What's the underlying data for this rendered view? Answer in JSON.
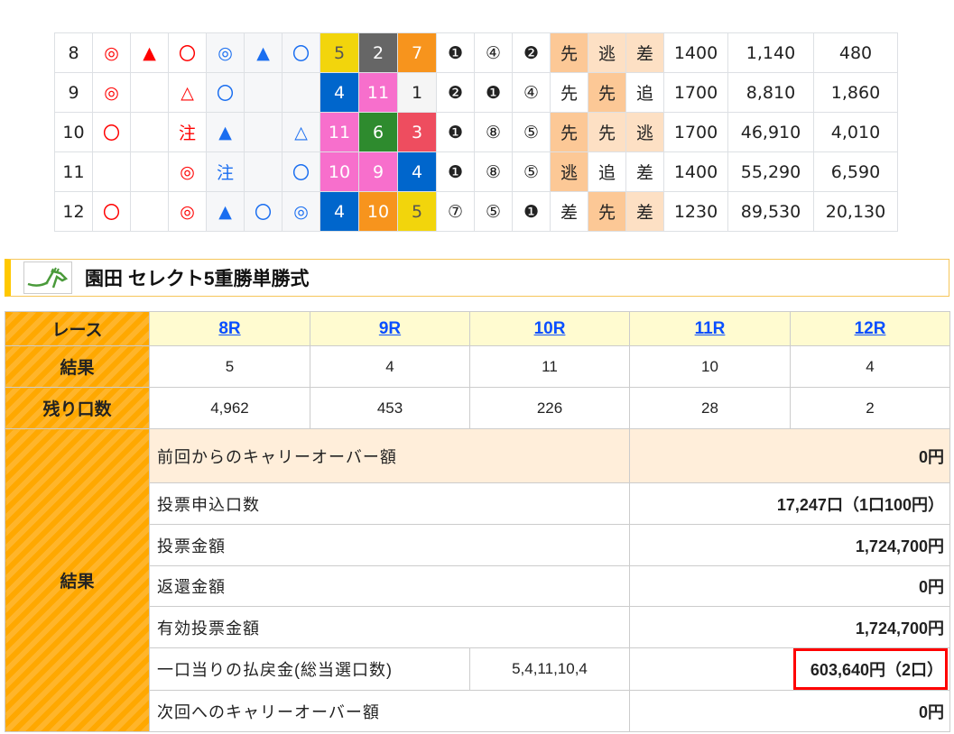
{
  "race_table": {
    "rows": [
      {
        "race": "8",
        "marks": [
          {
            "s": "◎",
            "c": "red"
          },
          {
            "s": "▲",
            "c": "red"
          },
          {
            "s": "〇",
            "c": "red"
          },
          {
            "s": "◎",
            "c": "blue"
          },
          {
            "s": "▲",
            "c": "blue"
          },
          {
            "s": "〇",
            "c": "blue"
          }
        ],
        "results": [
          {
            "n": "5",
            "bg": "#f2d50c",
            "fg": "#555"
          },
          {
            "n": "2",
            "bg": "#666666",
            "fg": "#fff"
          },
          {
            "n": "7",
            "bg": "#f7941d",
            "fg": "#fff"
          }
        ],
        "circles": [
          "❶",
          "④",
          "❷"
        ],
        "types": [
          {
            "t": "先",
            "k": 1
          },
          {
            "t": "逃",
            "k": 2
          },
          {
            "t": "差",
            "k": 2
          }
        ],
        "distance": "1400",
        "payout1": "1,140",
        "payout2": "480"
      },
      {
        "race": "9",
        "marks": [
          {
            "s": "◎",
            "c": "red"
          },
          {
            "s": "",
            "c": ""
          },
          {
            "s": "△",
            "c": "red"
          },
          {
            "s": "〇",
            "c": "blue"
          },
          {
            "s": "",
            "c": ""
          },
          {
            "s": "",
            "c": ""
          }
        ],
        "results": [
          {
            "n": "4",
            "bg": "#0066cc",
            "fg": "#fff"
          },
          {
            "n": "11",
            "bg": "#f76fcc",
            "fg": "#fff"
          },
          {
            "n": "1",
            "bg": "#f5f5f5",
            "fg": "#222"
          }
        ],
        "circles": [
          "❷",
          "❶",
          "④"
        ],
        "types": [
          {
            "t": "先",
            "k": 0
          },
          {
            "t": "先",
            "k": 1
          },
          {
            "t": "追",
            "k": 0
          }
        ],
        "distance": "1700",
        "payout1": "8,810",
        "payout2": "1,860"
      },
      {
        "race": "10",
        "marks": [
          {
            "s": "〇",
            "c": "red"
          },
          {
            "s": "",
            "c": ""
          },
          {
            "s": "注",
            "c": "red"
          },
          {
            "s": "▲",
            "c": "blue"
          },
          {
            "s": "",
            "c": ""
          },
          {
            "s": "△",
            "c": "blue"
          }
        ],
        "results": [
          {
            "n": "11",
            "bg": "#f76fcc",
            "fg": "#fff"
          },
          {
            "n": "6",
            "bg": "#2e8b2e",
            "fg": "#fff"
          },
          {
            "n": "3",
            "bg": "#ee4d5f",
            "fg": "#fff"
          }
        ],
        "circles": [
          "❶",
          "⑧",
          "⑤"
        ],
        "types": [
          {
            "t": "先",
            "k": 1
          },
          {
            "t": "先",
            "k": 2
          },
          {
            "t": "逃",
            "k": 2
          }
        ],
        "distance": "1700",
        "payout1": "46,910",
        "payout2": "4,010"
      },
      {
        "race": "11",
        "marks": [
          {
            "s": "",
            "c": ""
          },
          {
            "s": "",
            "c": ""
          },
          {
            "s": "◎",
            "c": "red"
          },
          {
            "s": "注",
            "c": "blue"
          },
          {
            "s": "",
            "c": ""
          },
          {
            "s": "〇",
            "c": "blue"
          }
        ],
        "results": [
          {
            "n": "10",
            "bg": "#f76fcc",
            "fg": "#fff"
          },
          {
            "n": "9",
            "bg": "#f76fcc",
            "fg": "#fff"
          },
          {
            "n": "4",
            "bg": "#0066cc",
            "fg": "#fff"
          }
        ],
        "circles": [
          "❶",
          "⑧",
          "⑤"
        ],
        "types": [
          {
            "t": "逃",
            "k": 1
          },
          {
            "t": "追",
            "k": 0
          },
          {
            "t": "差",
            "k": 0
          }
        ],
        "distance": "1400",
        "payout1": "55,290",
        "payout2": "6,590"
      },
      {
        "race": "12",
        "marks": [
          {
            "s": "〇",
            "c": "red"
          },
          {
            "s": "",
            "c": ""
          },
          {
            "s": "◎",
            "c": "red"
          },
          {
            "s": "▲",
            "c": "blue"
          },
          {
            "s": "〇",
            "c": "blue"
          },
          {
            "s": "◎",
            "c": "blue"
          }
        ],
        "results": [
          {
            "n": "4",
            "bg": "#0066cc",
            "fg": "#fff"
          },
          {
            "n": "10",
            "bg": "#f7941d",
            "fg": "#fff"
          },
          {
            "n": "5",
            "bg": "#f2d50c",
            "fg": "#555"
          }
        ],
        "circles": [
          "⑦",
          "⑤",
          "❶"
        ],
        "types": [
          {
            "t": "差",
            "k": 0
          },
          {
            "t": "先",
            "k": 1
          },
          {
            "t": "差",
            "k": 2
          }
        ],
        "distance": "1230",
        "payout1": "89,530",
        "payout2": "20,130"
      }
    ]
  },
  "section": {
    "title": "園田 セレクト5重勝単勝式",
    "logo_icon": "horse-logo-icon"
  },
  "select5": {
    "labels": {
      "race": "レース",
      "result": "結果",
      "remaining": "残り口数",
      "summary": "結果"
    },
    "races": [
      "8R",
      "9R",
      "10R",
      "11R",
      "12R"
    ],
    "results": [
      "5",
      "4",
      "11",
      "10",
      "4"
    ],
    "remaining": [
      "4,962",
      "453",
      "226",
      "28",
      "2"
    ],
    "summary": [
      {
        "label": "前回からのキャリーオーバー額",
        "value": "0円"
      },
      {
        "label": "投票申込口数",
        "value": "17,247口（1口100円）"
      },
      {
        "label": "投票金額",
        "value": "1,724,700円"
      },
      {
        "label": "返還金額",
        "value": "0円"
      },
      {
        "label": "有効投票金額",
        "value": "1,724,700円"
      },
      {
        "label": "一口当りの払戻金(総当選口数)",
        "combo": "5,4,11,10,4",
        "value": "603,640円（2口）"
      },
      {
        "label": "次回へのキャリーオーバー額",
        "value": "0円"
      }
    ]
  }
}
